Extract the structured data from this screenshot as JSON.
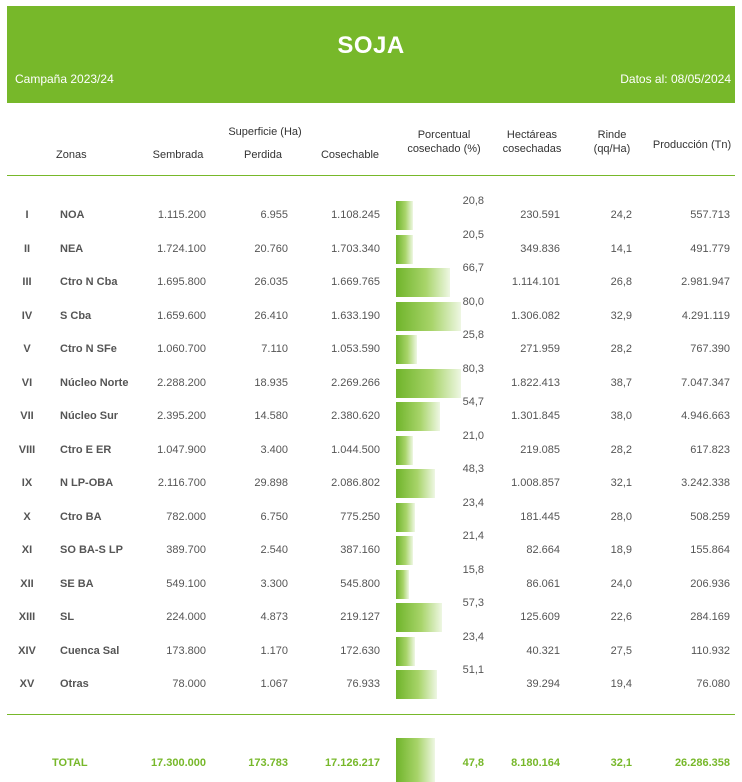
{
  "banner": {
    "title": "SOJA",
    "campaign": "Campaña 2023/24",
    "date": "Datos al: 08/05/2024"
  },
  "headers": {
    "zonas": "Zonas",
    "superficie": "Superficie (Ha)",
    "sembrada": "Sembrada",
    "perdida": "Perdida",
    "cosechable": "Cosechable",
    "porcentual_1": "Porcentual",
    "porcentual_2": "cosechado (%)",
    "hectareas_1": "Hectáreas",
    "hectareas_2": "cosechadas",
    "rinde_1": "Rinde",
    "rinde_2": "(qq/Ha)",
    "produccion": "Producción (Tn)"
  },
  "colors": {
    "accent": "#77b82a"
  },
  "rows": [
    {
      "num": "I",
      "zona": "NOA",
      "sembrada": "1.115.200",
      "perdida": "6.955",
      "cosechable": "1.108.245",
      "pct": "20,8",
      "pct_value": 20.8,
      "hectareas": "230.591",
      "rinde": "24,2",
      "produccion": "557.713"
    },
    {
      "num": "II",
      "zona": "NEA",
      "sembrada": "1.724.100",
      "perdida": "20.760",
      "cosechable": "1.703.340",
      "pct": "20,5",
      "pct_value": 20.5,
      "hectareas": "349.836",
      "rinde": "14,1",
      "produccion": "491.779"
    },
    {
      "num": "III",
      "zona": "Ctro N Cba",
      "sembrada": "1.695.800",
      "perdida": "26.035",
      "cosechable": "1.669.765",
      "pct": "66,7",
      "pct_value": 66.7,
      "hectareas": "1.114.101",
      "rinde": "26,8",
      "produccion": "2.981.947"
    },
    {
      "num": "IV",
      "zona": "S Cba",
      "sembrada": "1.659.600",
      "perdida": "26.410",
      "cosechable": "1.633.190",
      "pct": "80,0",
      "pct_value": 80.0,
      "hectareas": "1.306.082",
      "rinde": "32,9",
      "produccion": "4.291.119"
    },
    {
      "num": "V",
      "zona": "Ctro N SFe",
      "sembrada": "1.060.700",
      "perdida": "7.110",
      "cosechable": "1.053.590",
      "pct": "25,8",
      "pct_value": 25.8,
      "hectareas": "271.959",
      "rinde": "28,2",
      "produccion": "767.390"
    },
    {
      "num": "VI",
      "zona": "Núcleo Norte",
      "sembrada": "2.288.200",
      "perdida": "18.935",
      "cosechable": "2.269.266",
      "pct": "80,3",
      "pct_value": 80.3,
      "hectareas": "1.822.413",
      "rinde": "38,7",
      "produccion": "7.047.347"
    },
    {
      "num": "VII",
      "zona": "Núcleo Sur",
      "sembrada": "2.395.200",
      "perdida": "14.580",
      "cosechable": "2.380.620",
      "pct": "54,7",
      "pct_value": 54.7,
      "hectareas": "1.301.845",
      "rinde": "38,0",
      "produccion": "4.946.663"
    },
    {
      "num": "VIII",
      "zona": "Ctro E ER",
      "sembrada": "1.047.900",
      "perdida": "3.400",
      "cosechable": "1.044.500",
      "pct": "21,0",
      "pct_value": 21.0,
      "hectareas": "219.085",
      "rinde": "28,2",
      "produccion": "617.823"
    },
    {
      "num": "IX",
      "zona": "N LP-OBA",
      "sembrada": "2.116.700",
      "perdida": "29.898",
      "cosechable": "2.086.802",
      "pct": "48,3",
      "pct_value": 48.3,
      "hectareas": "1.008.857",
      "rinde": "32,1",
      "produccion": "3.242.338"
    },
    {
      "num": "X",
      "zona": "Ctro BA",
      "sembrada": "782.000",
      "perdida": "6.750",
      "cosechable": "775.250",
      "pct": "23,4",
      "pct_value": 23.4,
      "hectareas": "181.445",
      "rinde": "28,0",
      "produccion": "508.259"
    },
    {
      "num": "XI",
      "zona": "SO BA-S LP",
      "sembrada": "389.700",
      "perdida": "2.540",
      "cosechable": "387.160",
      "pct": "21,4",
      "pct_value": 21.4,
      "hectareas": "82.664",
      "rinde": "18,9",
      "produccion": "155.864"
    },
    {
      "num": "XII",
      "zona": "SE BA",
      "sembrada": "549.100",
      "perdida": "3.300",
      "cosechable": "545.800",
      "pct": "15,8",
      "pct_value": 15.8,
      "hectareas": "86.061",
      "rinde": "24,0",
      "produccion": "206.936"
    },
    {
      "num": "XIII",
      "zona": "SL",
      "sembrada": "224.000",
      "perdida": "4.873",
      "cosechable": "219.127",
      "pct": "57,3",
      "pct_value": 57.3,
      "hectareas": "125.609",
      "rinde": "22,6",
      "produccion": "284.169"
    },
    {
      "num": "XIV",
      "zona": "Cuenca Sal",
      "sembrada": "173.800",
      "perdida": "1.170",
      "cosechable": "172.630",
      "pct": "23,4",
      "pct_value": 23.4,
      "hectareas": "40.321",
      "rinde": "27,5",
      "produccion": "110.932"
    },
    {
      "num": "XV",
      "zona": "Otras",
      "sembrada": "78.000",
      "perdida": "1.067",
      "cosechable": "76.933",
      "pct": "51,1",
      "pct_value": 51.1,
      "hectareas": "39.294",
      "rinde": "19,4",
      "produccion": "76.080"
    }
  ],
  "total": {
    "label": "TOTAL",
    "sembrada": "17.300.000",
    "perdida": "173.783",
    "cosechable": "17.126.217",
    "pct": "47,8",
    "pct_value": 47.8,
    "hectareas": "8.180.164",
    "rinde": "32,1",
    "produccion": "26.286.358"
  }
}
